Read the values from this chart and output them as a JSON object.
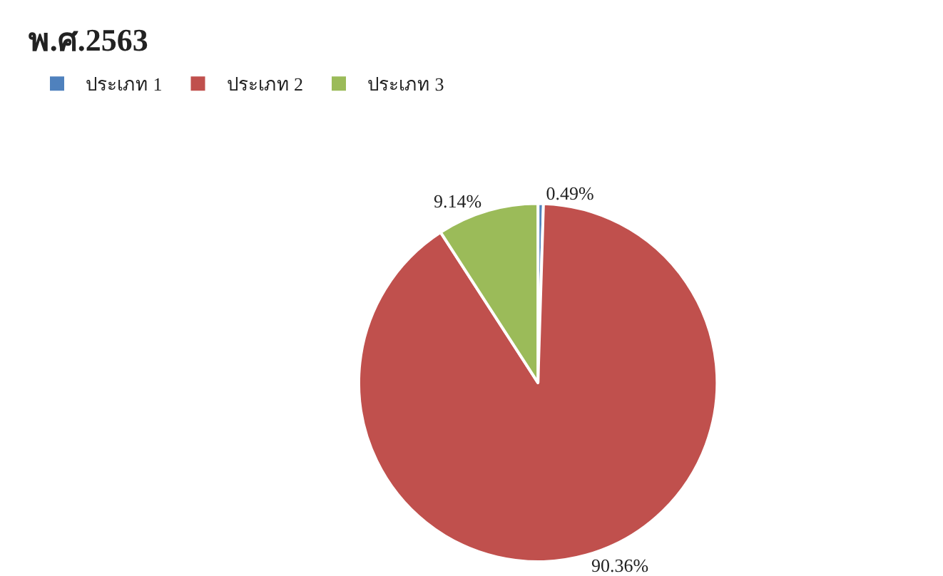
{
  "chart_data": {
    "type": "pie",
    "title": "พ.ศ.2563",
    "categories": [
      "ประเภท 1",
      "ประเภท 2",
      "ประเภท 3"
    ],
    "values": [
      0.49,
      90.36,
      9.14
    ],
    "colors": [
      "#4f81bd",
      "#c0504d",
      "#9bbb59"
    ],
    "value_labels": [
      "0.49%",
      "90.36%",
      "9.14%"
    ],
    "legend": "top left"
  }
}
